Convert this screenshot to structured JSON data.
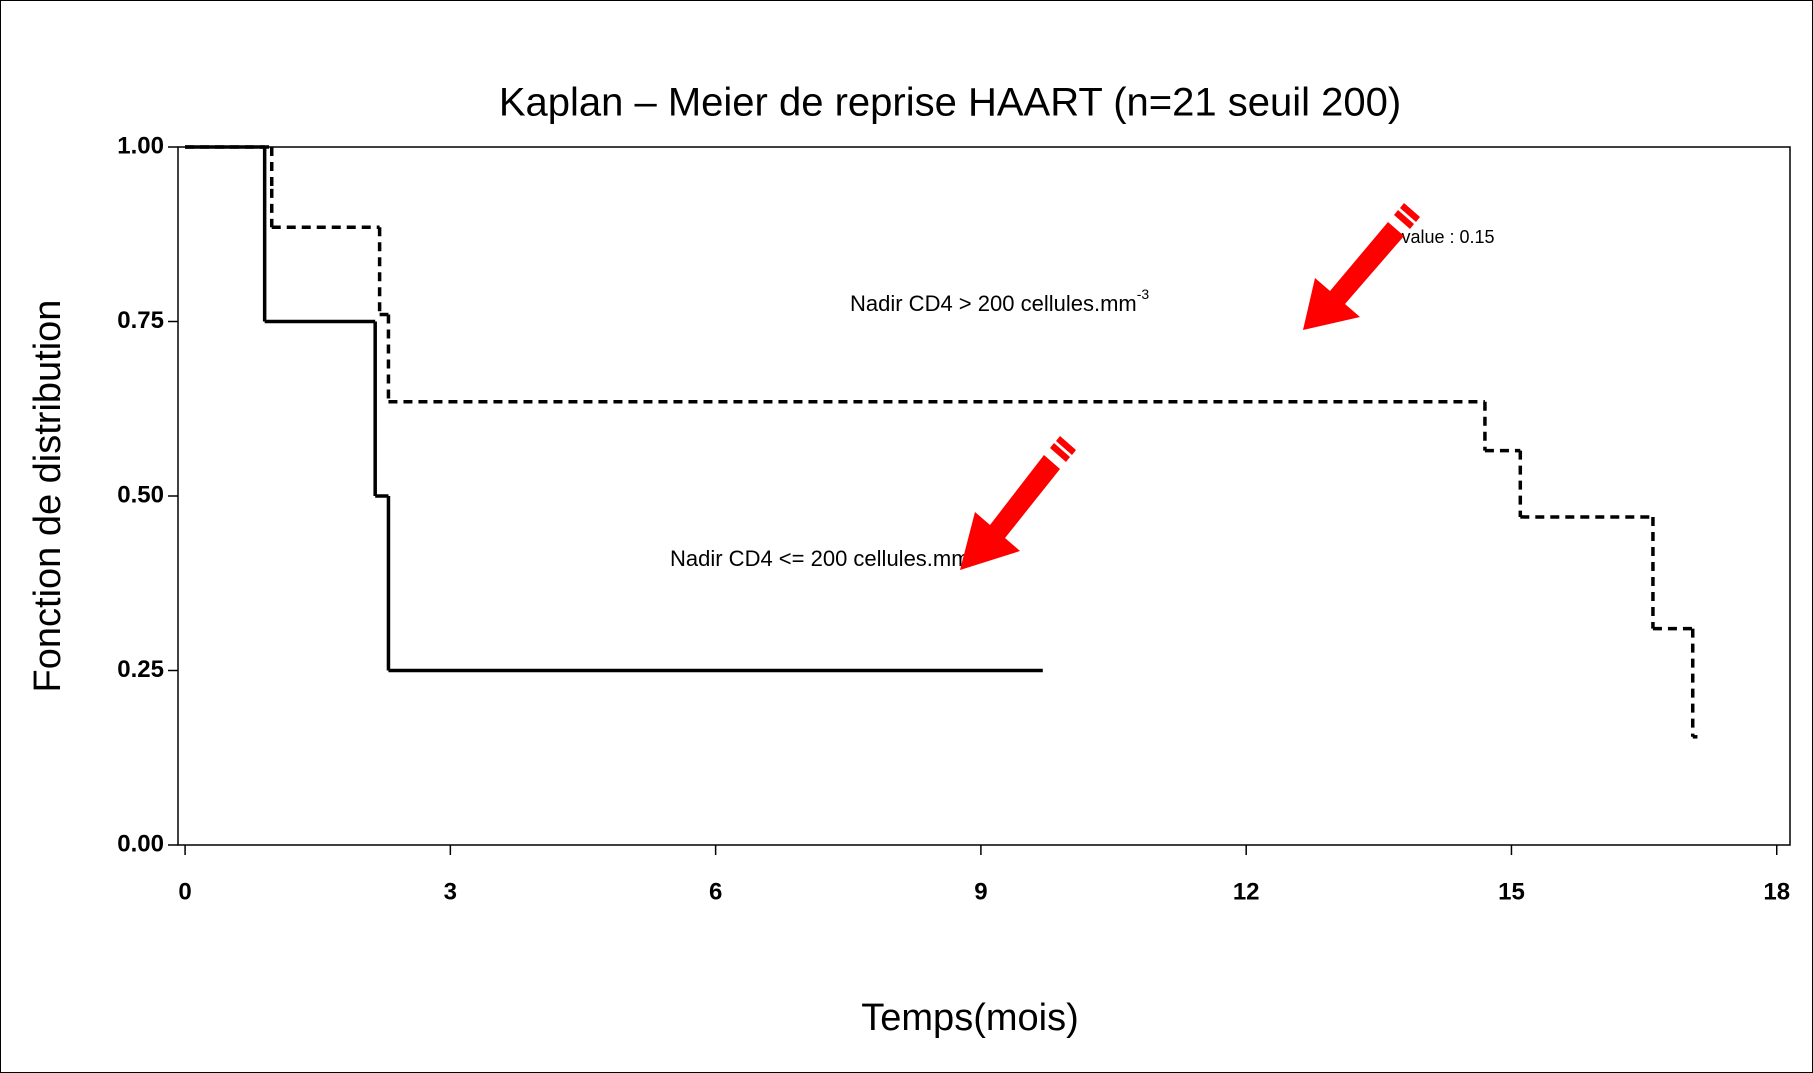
{
  "chart_data": {
    "type": "step",
    "title": "Kaplan – Meier de reprise HAART (n=21 seuil 200)",
    "x_label": "Temps(mois)",
    "y_label": "Fonction de distribution",
    "xlim": [
      -0.08,
      18.15
    ],
    "ylim": [
      0,
      1
    ],
    "xticks": [
      0,
      3,
      6,
      9,
      12,
      15,
      18
    ],
    "yticks": [
      {
        "value": 0,
        "label": "0.00"
      },
      {
        "value": 0.25,
        "label": "0.25"
      },
      {
        "value": 0.5,
        "label": "0.50"
      },
      {
        "value": 0.75,
        "label": "0.75"
      },
      {
        "value": 1,
        "label": "1.00"
      }
    ],
    "series": [
      {
        "color": "#000000",
        "dashed": false,
        "x": [
          0,
          0.9,
          2.15,
          2.3,
          9.7
        ],
        "values": [
          1,
          0.75,
          0.5,
          0.25,
          0.25
        ]
      },
      {
        "color": "#000000",
        "dashed": true,
        "x": [
          0,
          0.98,
          0.98,
          2.2,
          2.3,
          14.7,
          15.1,
          16.6,
          17.05,
          17.1
        ],
        "values": [
          1,
          0.94,
          0.885,
          0.76,
          0.635,
          0.565,
          0.47,
          0.31,
          0.155,
          0.155
        ]
      }
    ],
    "annotations": [
      {
        "text": "p-value : 0.15"
      },
      {
        "text": "Nadir CD4 > 200 cellules.mm",
        "sup": "-3"
      },
      {
        "text": "Nadir CD4 <= 200 cellules.mm",
        "sup": "-3"
      }
    ]
  }
}
